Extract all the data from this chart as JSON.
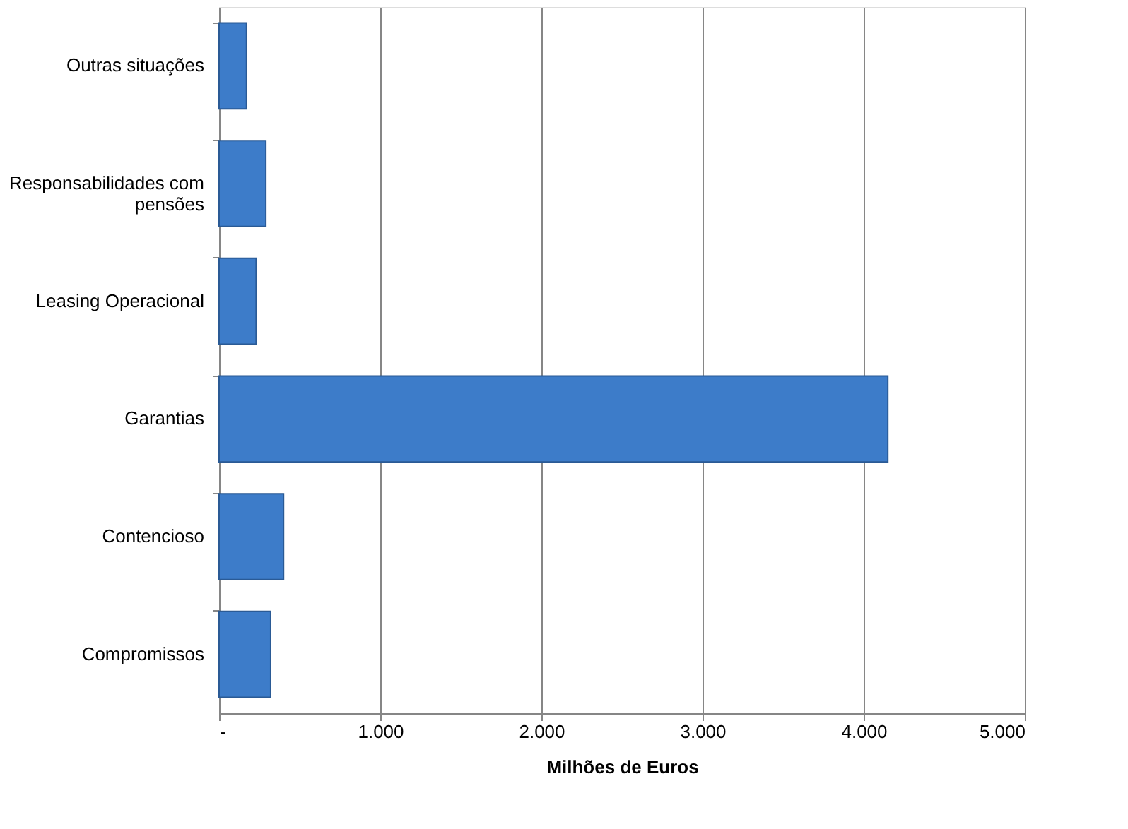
{
  "chart_data": {
    "type": "bar",
    "orientation": "horizontal",
    "xlabel": "Milhões de Euros",
    "categories": [
      "Outras situações",
      "Responsabilidades com pensões",
      "Leasing Operacional",
      "Garantias",
      "Contencioso",
      "Compromissos"
    ],
    "values": [
      170,
      290,
      230,
      4150,
      400,
      320
    ],
    "color": "#3d7cc9",
    "xlim": [
      0,
      5000
    ],
    "xticks": [
      {
        "value": 0,
        "label": "-"
      },
      {
        "value": 1000,
        "label": "1.000"
      },
      {
        "value": 2000,
        "label": "2.000"
      },
      {
        "value": 3000,
        "label": "3.000"
      },
      {
        "value": 4000,
        "label": "4.000"
      },
      {
        "value": 5000,
        "label": "5.000"
      }
    ],
    "grid": "x"
  }
}
